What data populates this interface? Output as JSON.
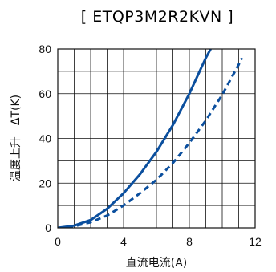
{
  "chart_data": {
    "type": "line",
    "title": "[ ETQP3M2R2KVN ]",
    "xlabel": "直流电流(A)",
    "ylabel": "温度上升　ΔT(K)",
    "xlim": [
      0,
      12
    ],
    "ylim": [
      0,
      80
    ],
    "xticks": [
      "0",
      "4",
      "8",
      "12"
    ],
    "yticks": [
      "0",
      "20",
      "40",
      "60",
      "80"
    ],
    "grid": true,
    "series": [
      {
        "style": "solid",
        "color": "#0b4f9e",
        "x": [
          0,
          1,
          2,
          3,
          4,
          5,
          6,
          7,
          8,
          9,
          9.3
        ],
        "y": [
          0,
          1,
          3.5,
          8.5,
          15.5,
          24,
          34,
          46,
          60,
          76,
          80
        ]
      },
      {
        "style": "dashed",
        "color": "#0b4f9e",
        "x": [
          0,
          1,
          2,
          3,
          4,
          5,
          6,
          7,
          8,
          9,
          10,
          11,
          11.2
        ],
        "y": [
          0,
          0.7,
          2.5,
          5.5,
          10,
          15.5,
          21.5,
          29,
          38,
          48,
          59.5,
          73,
          76
        ]
      }
    ]
  }
}
